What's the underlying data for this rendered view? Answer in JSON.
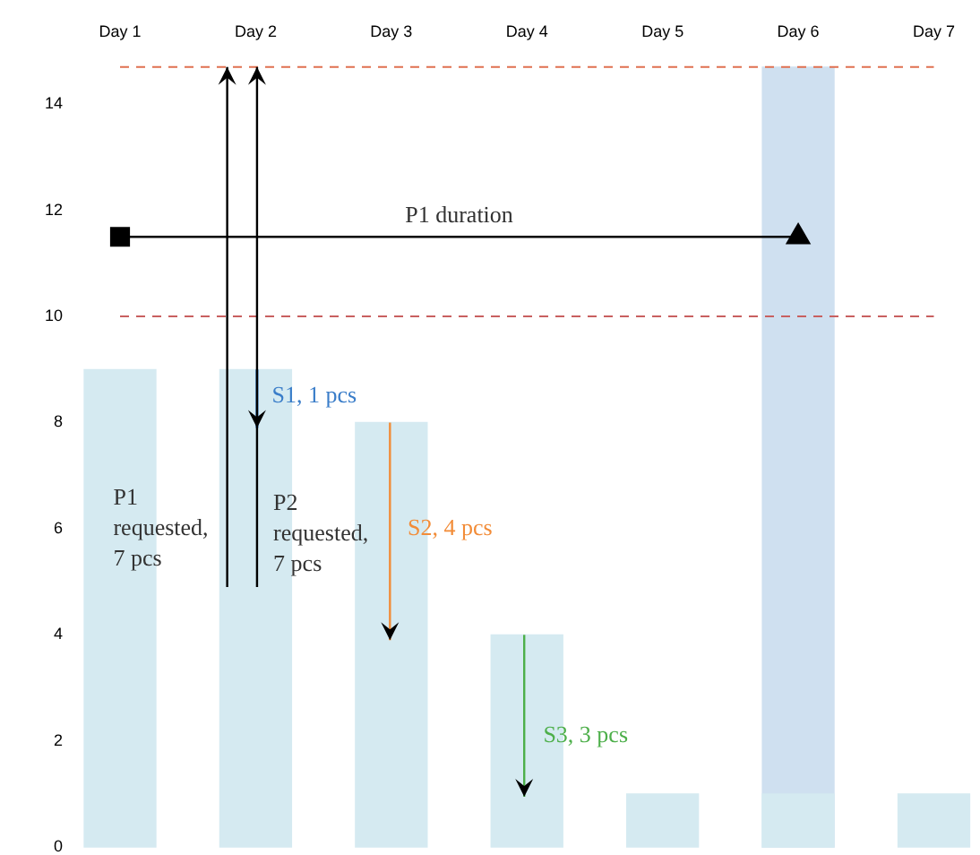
{
  "chart_data": {
    "type": "bar",
    "categories": [
      "Day 1",
      "Day 2",
      "Day 3",
      "Day 4",
      "Day 5",
      "Day 6",
      "Day 7"
    ],
    "series": [
      {
        "color": "#d5eaf1",
        "values": [
          9,
          9,
          8,
          4,
          1,
          1,
          1
        ]
      },
      {
        "color": "#cfe0f0",
        "values": [
          null,
          null,
          null,
          null,
          null,
          14.7,
          null
        ]
      },
      {
        "type": "line",
        "name": "P1 duration",
        "color": "#000000",
        "marker": "square",
        "x": [
          "Day 1",
          "Day 6"
        ],
        "values": [
          11.5,
          11.5
        ]
      }
    ],
    "ylim": [
      0,
      14.7
    ],
    "yticks": [
      0,
      2,
      4,
      6,
      8,
      10,
      12,
      14
    ],
    "ref_lines": [
      {
        "axis": "y",
        "value": 14.7,
        "color": "#e07050",
        "line_style": "dashed"
      },
      {
        "axis": "y",
        "value": 10,
        "color": "#c86060",
        "line_style": "dashed"
      }
    ],
    "annotations": [
      "S1, 1 pcs",
      "P1 requested, 7 pcs",
      "P2 requested, 7 pcs",
      "S2, 4 pcs",
      "S3, 3 pcs"
    ],
    "grid": false,
    "legend": false
  }
}
